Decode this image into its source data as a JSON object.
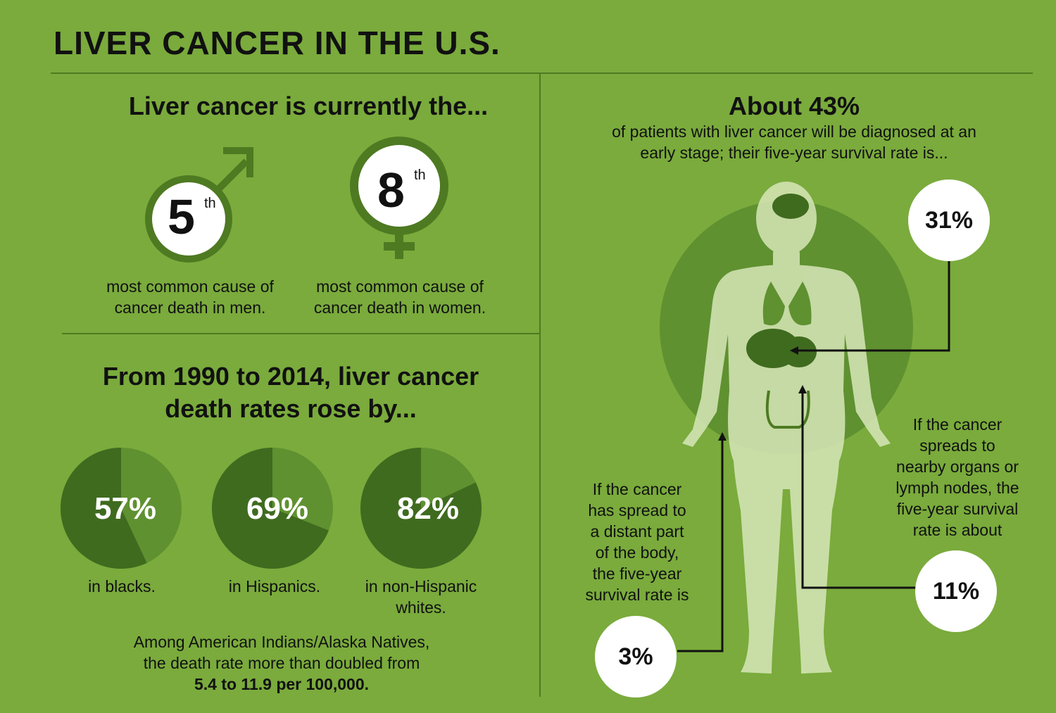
{
  "title": "LIVER CANCER IN THE U.S.",
  "rank_section": {
    "heading": "Liver cancer is currently the...",
    "men": {
      "rank": "5",
      "suffix": "th",
      "caption_line1": "most common cause of",
      "caption_line2": "cancer death in men."
    },
    "women": {
      "rank": "8",
      "suffix": "th",
      "caption_line1": "most common cause of",
      "caption_line2": "cancer death in women."
    }
  },
  "rates_section": {
    "heading_line1": "From 1990 to 2014, liver cancer",
    "heading_line2": "death rates rose by...",
    "pies": [
      {
        "value": 57,
        "label": "57%",
        "caption_line1": "in blacks.",
        "caption_line2": ""
      },
      {
        "value": 69,
        "label": "69%",
        "caption_line1": "in Hispanics.",
        "caption_line2": ""
      },
      {
        "value": 82,
        "label": "82%",
        "caption_line1": "in non-Hispanic",
        "caption_line2": "whites."
      }
    ],
    "footnote_line1": "Among American Indians/Alaska Natives,",
    "footnote_line2": "the death rate more than doubled from",
    "footnote_bold": "5.4 to 11.9 per 100,000."
  },
  "survival_section": {
    "heading": "About 43%",
    "sub_line1": "of patients with liver cancer will be diagnosed at an",
    "sub_line2": "early stage; their five-year survival rate is...",
    "early": {
      "label": "31%"
    },
    "regional": {
      "label": "11%",
      "text": [
        "If the cancer",
        "spreads to",
        "nearby organs or",
        "lymph nodes, the",
        "five-year survival",
        "rate is about"
      ]
    },
    "distant": {
      "label": "3%",
      "text": [
        "If the cancer",
        "has spread to",
        "a distant part",
        "of the body,",
        "the five-year",
        "survival rate is"
      ]
    }
  },
  "colors": {
    "background": "#7aab3c",
    "dark_green": "#3f6b1f",
    "mid_green": "#5f9130",
    "light_body": "#d7e6b8",
    "white": "#ffffff"
  }
}
